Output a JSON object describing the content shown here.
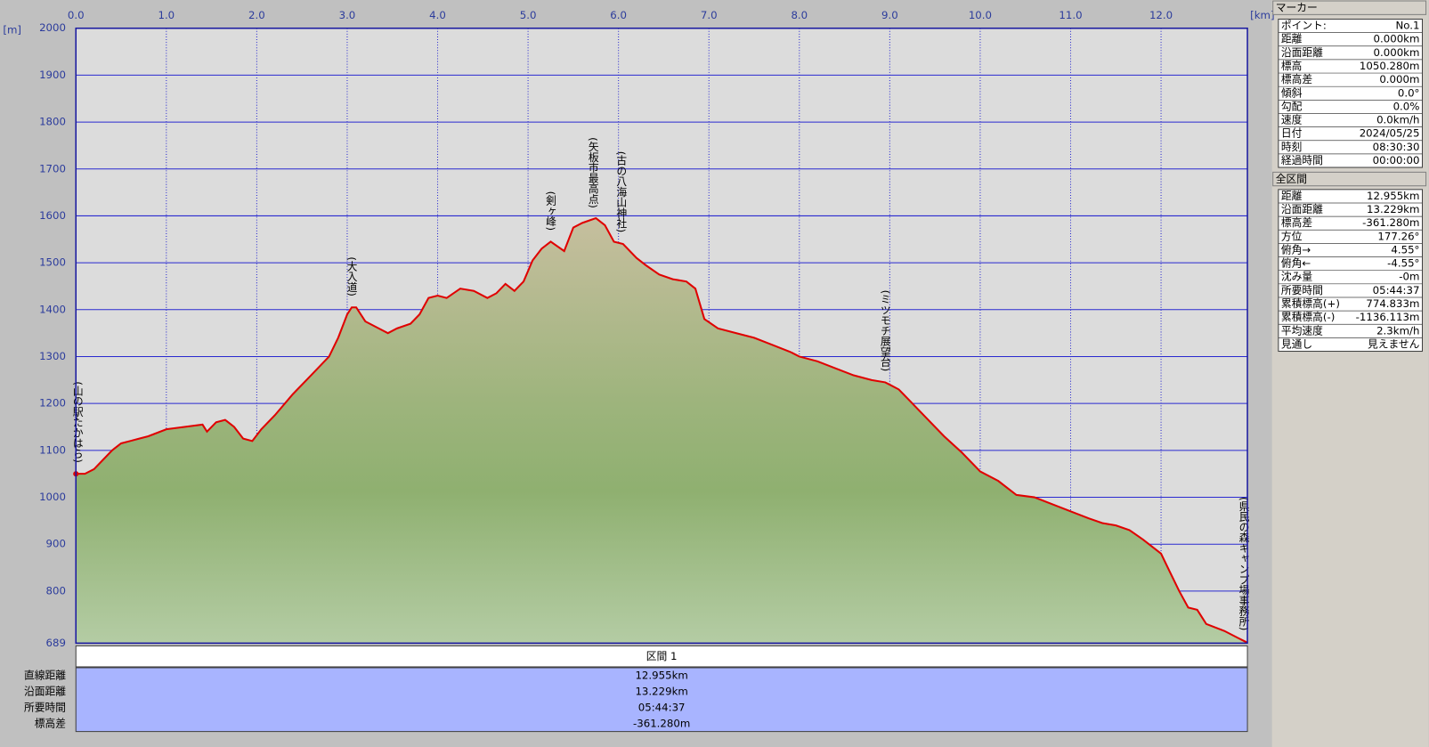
{
  "chart_data": {
    "type": "line",
    "xlabel": "[km]",
    "ylabel": "[m]",
    "x": [
      0,
      0.1,
      0.2,
      0.3,
      0.4,
      0.5,
      0.6,
      0.7,
      0.8,
      1.0,
      1.2,
      1.4,
      1.45,
      1.55,
      1.65,
      1.75,
      1.85,
      1.95,
      2.05,
      2.2,
      2.4,
      2.6,
      2.8,
      2.9,
      3.0,
      3.05,
      3.1,
      3.2,
      3.35,
      3.45,
      3.55,
      3.7,
      3.8,
      3.9,
      4.0,
      4.1,
      4.25,
      4.4,
      4.55,
      4.65,
      4.75,
      4.85,
      4.95,
      5.05,
      5.15,
      5.25,
      5.4,
      5.5,
      5.6,
      5.75,
      5.85,
      5.95,
      6.05,
      6.2,
      6.3,
      6.45,
      6.6,
      6.75,
      6.85,
      6.95,
      7.1,
      7.3,
      7.5,
      7.7,
      7.9,
      8.0,
      8.2,
      8.4,
      8.6,
      8.8,
      8.95,
      9.0,
      9.1,
      9.2,
      9.4,
      9.6,
      9.8,
      10.0,
      10.2,
      10.4,
      10.6,
      10.8,
      11.0,
      11.2,
      11.35,
      11.5,
      11.65,
      11.8,
      12.0,
      12.1,
      12.2,
      12.3,
      12.4,
      12.5,
      12.7,
      12.85,
      12.955
    ],
    "values": [
      1050,
      1050,
      1060,
      1080,
      1100,
      1115,
      1120,
      1125,
      1130,
      1145,
      1150,
      1155,
      1140,
      1160,
      1165,
      1150,
      1125,
      1120,
      1145,
      1175,
      1220,
      1260,
      1300,
      1340,
      1390,
      1405,
      1405,
      1375,
      1360,
      1350,
      1360,
      1370,
      1390,
      1425,
      1430,
      1425,
      1445,
      1440,
      1425,
      1435,
      1455,
      1440,
      1460,
      1505,
      1530,
      1545,
      1525,
      1575,
      1585,
      1595,
      1580,
      1545,
      1540,
      1510,
      1495,
      1475,
      1465,
      1460,
      1445,
      1380,
      1360,
      1350,
      1340,
      1325,
      1310,
      1300,
      1290,
      1275,
      1260,
      1250,
      1245,
      1240,
      1230,
      1210,
      1170,
      1130,
      1095,
      1055,
      1035,
      1005,
      1000,
      985,
      970,
      955,
      945,
      940,
      930,
      910,
      880,
      840,
      800,
      765,
      760,
      730,
      715,
      700,
      690
    ],
    "color": "#e00000",
    "xlim": [
      0,
      12.955
    ],
    "ylim": [
      689,
      2000
    ],
    "xticks": [
      {
        "value": 0,
        "label": "0.0"
      },
      {
        "value": 1,
        "label": "1.0"
      },
      {
        "value": 2,
        "label": "2.0"
      },
      {
        "value": 3,
        "label": "3.0"
      },
      {
        "value": 4,
        "label": "4.0"
      },
      {
        "value": 5,
        "label": "5.0"
      },
      {
        "value": 6,
        "label": "6.0"
      },
      {
        "value": 7,
        "label": "7.0"
      },
      {
        "value": 8,
        "label": "8.0"
      },
      {
        "value": 9,
        "label": "9.0"
      },
      {
        "value": 10,
        "label": "10.0"
      },
      {
        "value": 11,
        "label": "11.0"
      },
      {
        "value": 12,
        "label": "12.0"
      }
    ],
    "yticks": [
      689,
      800,
      900,
      1000,
      1100,
      1200,
      1300,
      1400,
      1500,
      1600,
      1700,
      1800,
      1900,
      2000
    ],
    "grid": true,
    "annotations": [
      {
        "x": 0,
        "label": "(山の駅たかはら)"
      },
      {
        "x": 3.05,
        "label": "(大入道)"
      },
      {
        "x": 5.25,
        "label": "(剣ヶ峰)"
      },
      {
        "x": 5.72,
        "label": "(矢板市最高点)"
      },
      {
        "x": 6.03,
        "label": "(古の八海山神社)"
      },
      {
        "x": 8.95,
        "label": "(ミツモチ展望台)"
      },
      {
        "x": 12.93,
        "label": "(県民の森キャンプ場事務所)"
      }
    ]
  },
  "section": {
    "title": "区間 1",
    "rows": [
      [
        "直線距離",
        "12.955km"
      ],
      [
        "沿面距離",
        "13.229km"
      ],
      [
        "所要時間",
        "05:44:37"
      ],
      [
        "標高差",
        "-361.280m"
      ]
    ]
  },
  "marker_panel": {
    "title": "マーカー",
    "rows": [
      [
        "ポイント:",
        "No.1"
      ],
      [
        "距離",
        "0.000km"
      ],
      [
        "沿面距離",
        "0.000km"
      ],
      [
        "標高",
        "1050.280m"
      ],
      [
        "標高差",
        "0.000m"
      ],
      [
        "傾斜",
        "0.0°"
      ],
      [
        "勾配",
        "0.0%"
      ],
      [
        "速度",
        "0.0km/h"
      ],
      [
        "日付",
        "2024/05/25"
      ],
      [
        "時刻",
        "08:30:30"
      ],
      [
        "経過時間",
        "00:00:00"
      ]
    ]
  },
  "total_panel": {
    "title": "全区間",
    "rows": [
      [
        "距離",
        "12.955km"
      ],
      [
        "沿面距離",
        "13.229km"
      ],
      [
        "標高差",
        "-361.280m"
      ],
      [
        "方位",
        "177.26°"
      ],
      [
        "俯角→",
        "4.55°"
      ],
      [
        "俯角←",
        "-4.55°"
      ],
      [
        "沈み量",
        "-0m"
      ],
      [
        "所要時間",
        "05:44:37"
      ],
      [
        "累積標高(+)",
        "774.833m"
      ],
      [
        "累積標高(-)",
        "-1136.113m"
      ],
      [
        "平均速度",
        "2.3km/h"
      ],
      [
        "見通し",
        "見えません"
      ]
    ]
  }
}
